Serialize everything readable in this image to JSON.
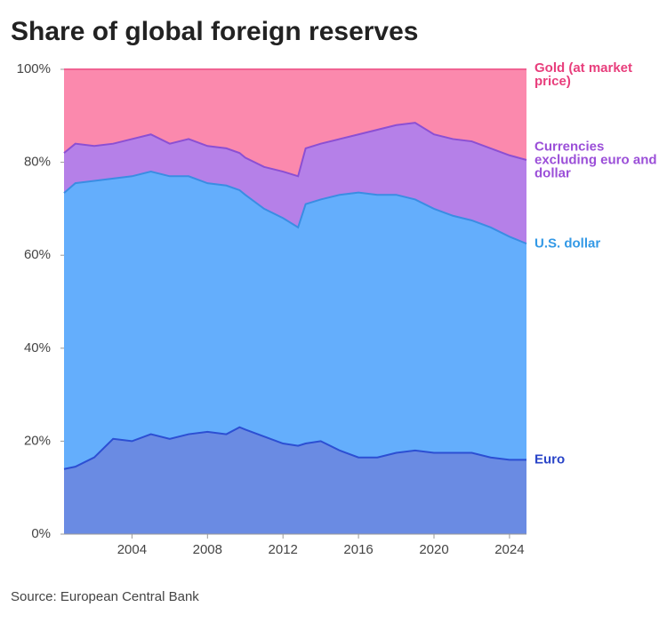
{
  "chart_data": {
    "type": "stacked-area",
    "title": "Share of global foreign reserves",
    "source": "Source: European Central Bank",
    "x": [
      2000.4,
      2001,
      2002,
      2003,
      2004,
      2005,
      2006,
      2007,
      2008,
      2009,
      2009.7,
      2010,
      2011,
      2012,
      2012.8,
      2013.2,
      2014,
      2015,
      2016,
      2017,
      2018,
      2019,
      2020,
      2021,
      2022,
      2023,
      2024,
      2024.9
    ],
    "xlim": [
      2000.4,
      2024.9
    ],
    "xticks": [
      2004,
      2008,
      2012,
      2016,
      2020,
      2024
    ],
    "ylim": [
      0,
      100
    ],
    "yticks": [
      {
        "value": 0,
        "label": "0%"
      },
      {
        "value": 20,
        "label": "20%"
      },
      {
        "value": 40,
        "label": "40%"
      },
      {
        "value": 60,
        "label": "60%"
      },
      {
        "value": 80,
        "label": "80%"
      },
      {
        "value": 100,
        "label": "100%"
      }
    ],
    "series": [
      {
        "name": "Euro",
        "color": "#6a8be3",
        "line_color": "#2c4fd3",
        "label_color": "#2a45c8",
        "values": [
          14,
          14.5,
          16.5,
          20.5,
          20,
          21.5,
          20.5,
          21.5,
          22,
          21.5,
          23,
          22.5,
          21,
          19.5,
          19,
          19.5,
          20,
          18,
          16.5,
          16.5,
          17.5,
          18,
          17.5,
          17.5,
          17.5,
          16.5,
          16,
          16
        ]
      },
      {
        "name": "U.S. dollar",
        "color": "#64aefc",
        "line_color": "#3a8de3",
        "label_color": "#3399e6",
        "values": [
          59.4,
          61,
          59.5,
          56,
          57,
          56.5,
          56.5,
          55.5,
          53.5,
          53.5,
          51,
          50.5,
          49,
          48.5,
          47,
          51.5,
          52,
          55,
          57,
          56.5,
          55.5,
          54,
          52.5,
          51,
          50,
          49.5,
          48,
          46.5
        ]
      },
      {
        "name": "Currencies excluding euro and dollar",
        "color": "#b580e8",
        "line_color": "#8c4fd3",
        "label_color": "#9b4fd8",
        "values": [
          8.6,
          8.5,
          7.5,
          7.5,
          8,
          8,
          7,
          8,
          8,
          8,
          8,
          8,
          9,
          10,
          11,
          12,
          12,
          12,
          12.5,
          14,
          15,
          16.5,
          16,
          16.5,
          17,
          17,
          17.5,
          18
        ]
      },
      {
        "name": "Gold (at market price)",
        "color": "#fb89ad",
        "line_color": "#f06292",
        "label_color": "#e83e7c",
        "values": [
          18,
          16,
          16.5,
          16,
          15,
          14,
          16,
          15,
          16.5,
          17,
          18,
          19,
          21,
          22,
          23,
          17,
          16,
          15,
          14,
          13,
          12,
          11.5,
          14,
          15,
          15.5,
          17,
          18.5,
          19.5
        ]
      }
    ]
  }
}
